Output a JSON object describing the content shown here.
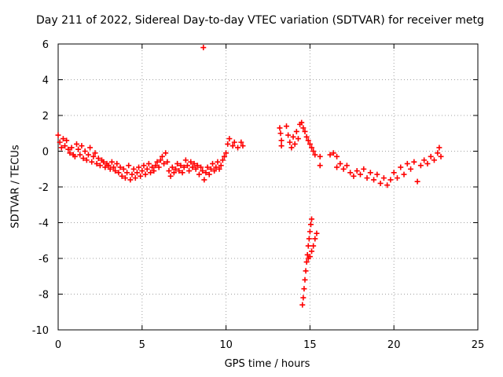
{
  "chart_data": {
    "type": "scatter",
    "title": "Day 211 of 2022, Sidereal Day-to-day VTEC variation (SDTVAR) for receiver metg",
    "xlabel": "GPS time / hours",
    "ylabel": "SDTVAR / TECUs",
    "xlim": [
      0,
      25
    ],
    "ylim": [
      -10,
      6
    ],
    "xticks": [
      0,
      5,
      10,
      15,
      20,
      25
    ],
    "yticks": [
      -10,
      -8,
      -6,
      -4,
      -2,
      0,
      2,
      4,
      6
    ],
    "grid": true,
    "marker": "+",
    "color": "#ff0000",
    "series": [
      {
        "name": "SDTVAR",
        "points": [
          [
            0.0,
            0.9
          ],
          [
            0.1,
            0.5
          ],
          [
            0.2,
            0.2
          ],
          [
            0.3,
            0.7
          ],
          [
            0.4,
            0.3
          ],
          [
            0.5,
            0.6
          ],
          [
            0.6,
            0.1
          ],
          [
            0.7,
            -0.1
          ],
          [
            0.8,
            0.2
          ],
          [
            0.9,
            -0.2
          ],
          [
            1.0,
            -0.3
          ],
          [
            1.1,
            0.4
          ],
          [
            1.2,
            0.1
          ],
          [
            1.3,
            -0.2
          ],
          [
            1.4,
            0.3
          ],
          [
            1.5,
            -0.4
          ],
          [
            1.6,
            0.0
          ],
          [
            1.7,
            -0.5
          ],
          [
            1.8,
            -0.2
          ],
          [
            1.9,
            0.2
          ],
          [
            2.0,
            -0.6
          ],
          [
            2.1,
            -0.3
          ],
          [
            2.2,
            -0.1
          ],
          [
            2.3,
            -0.7
          ],
          [
            2.4,
            -0.4
          ],
          [
            2.5,
            -0.8
          ],
          [
            2.6,
            -0.5
          ],
          [
            2.7,
            -0.6
          ],
          [
            2.8,
            -0.9
          ],
          [
            2.9,
            -0.7
          ],
          [
            3.0,
            -0.8
          ],
          [
            3.1,
            -1.0
          ],
          [
            3.2,
            -0.6
          ],
          [
            3.3,
            -0.9
          ],
          [
            3.4,
            -1.1
          ],
          [
            3.5,
            -0.7
          ],
          [
            3.6,
            -1.2
          ],
          [
            3.7,
            -0.9
          ],
          [
            3.8,
            -1.4
          ],
          [
            3.9,
            -1.0
          ],
          [
            4.0,
            -1.5
          ],
          [
            4.1,
            -1.2
          ],
          [
            4.2,
            -0.8
          ],
          [
            4.3,
            -1.6
          ],
          [
            4.4,
            -1.3
          ],
          [
            4.5,
            -1.0
          ],
          [
            4.6,
            -1.5
          ],
          [
            4.7,
            -1.2
          ],
          [
            4.8,
            -0.9
          ],
          [
            4.9,
            -1.4
          ],
          [
            5.0,
            -1.1
          ],
          [
            5.1,
            -0.8
          ],
          [
            5.2,
            -1.3
          ],
          [
            5.3,
            -1.0
          ],
          [
            5.4,
            -0.7
          ],
          [
            5.5,
            -1.2
          ],
          [
            5.6,
            -0.9
          ],
          [
            5.7,
            -1.1
          ],
          [
            5.8,
            -0.8
          ],
          [
            5.9,
            -0.6
          ],
          [
            6.0,
            -0.9
          ],
          [
            6.1,
            -0.5
          ],
          [
            6.2,
            -0.3
          ],
          [
            6.3,
            -0.7
          ],
          [
            6.4,
            -0.1
          ],
          [
            6.5,
            -0.6
          ],
          [
            6.6,
            -1.1
          ],
          [
            6.7,
            -1.4
          ],
          [
            6.8,
            -0.9
          ],
          [
            6.9,
            -1.2
          ],
          [
            7.0,
            -1.0
          ],
          [
            7.1,
            -0.7
          ],
          [
            7.2,
            -1.1
          ],
          [
            7.3,
            -0.8
          ],
          [
            7.4,
            -1.2
          ],
          [
            7.5,
            -0.9
          ],
          [
            7.6,
            -0.5
          ],
          [
            7.7,
            -0.8
          ],
          [
            7.8,
            -1.1
          ],
          [
            7.9,
            -0.6
          ],
          [
            8.0,
            -0.9
          ],
          [
            8.1,
            -0.7
          ],
          [
            8.2,
            -1.0
          ],
          [
            8.3,
            -0.8
          ],
          [
            8.4,
            -1.3
          ],
          [
            8.5,
            -0.9
          ],
          [
            8.6,
            -1.1
          ],
          [
            8.7,
            -1.6
          ],
          [
            8.8,
            -1.2
          ],
          [
            8.9,
            -0.9
          ],
          [
            9.0,
            -1.3
          ],
          [
            9.1,
            -1.0
          ],
          [
            9.2,
            -0.7
          ],
          [
            9.3,
            -1.1
          ],
          [
            9.4,
            -0.9
          ],
          [
            9.5,
            -0.6
          ],
          [
            9.6,
            -1.0
          ],
          [
            9.7,
            -0.8
          ],
          [
            9.8,
            -0.5
          ],
          [
            9.9,
            -0.3
          ],
          [
            10.0,
            -0.1
          ],
          [
            10.1,
            0.4
          ],
          [
            10.2,
            0.7
          ],
          [
            10.4,
            0.3
          ],
          [
            10.5,
            0.5
          ],
          [
            10.7,
            0.2
          ],
          [
            10.9,
            0.5
          ],
          [
            11.0,
            0.3
          ],
          [
            8.65,
            5.8
          ],
          [
            13.2,
            1.3
          ],
          [
            13.25,
            1.0
          ],
          [
            13.3,
            0.6
          ],
          [
            13.3,
            0.3
          ],
          [
            13.6,
            1.4
          ],
          [
            13.7,
            0.9
          ],
          [
            13.8,
            0.5
          ],
          [
            13.9,
            0.2
          ],
          [
            14.0,
            0.8
          ],
          [
            14.1,
            0.4
          ],
          [
            14.2,
            1.1
          ],
          [
            14.3,
            0.7
          ],
          [
            14.4,
            1.5
          ],
          [
            14.5,
            1.6
          ],
          [
            14.6,
            1.3
          ],
          [
            14.7,
            1.1
          ],
          [
            14.8,
            0.8
          ],
          [
            14.9,
            0.6
          ],
          [
            15.0,
            0.4
          ],
          [
            15.1,
            0.2
          ],
          [
            15.2,
            0.0
          ],
          [
            15.3,
            -0.2
          ],
          [
            15.6,
            -0.3
          ],
          [
            15.6,
            -0.8
          ],
          [
            14.55,
            -8.6
          ],
          [
            14.6,
            -8.2
          ],
          [
            14.65,
            -7.7
          ],
          [
            14.7,
            -7.2
          ],
          [
            14.75,
            -6.7
          ],
          [
            14.8,
            -6.2
          ],
          [
            14.85,
            -5.8
          ],
          [
            14.9,
            -5.3
          ],
          [
            14.95,
            -4.9
          ],
          [
            15.0,
            -4.5
          ],
          [
            15.05,
            -4.1
          ],
          [
            15.1,
            -3.8
          ],
          [
            14.9,
            -6.0
          ],
          [
            15.0,
            -5.9
          ],
          [
            15.1,
            -5.6
          ],
          [
            15.2,
            -5.3
          ],
          [
            15.3,
            -4.9
          ],
          [
            15.4,
            -4.6
          ],
          [
            16.2,
            -0.2
          ],
          [
            16.4,
            -0.1
          ],
          [
            16.6,
            -0.3
          ],
          [
            16.6,
            -0.9
          ],
          [
            16.8,
            -0.7
          ],
          [
            17.0,
            -1.0
          ],
          [
            17.2,
            -0.8
          ],
          [
            17.4,
            -1.2
          ],
          [
            17.6,
            -1.4
          ],
          [
            17.8,
            -1.1
          ],
          [
            18.0,
            -1.3
          ],
          [
            18.2,
            -1.0
          ],
          [
            18.4,
            -1.5
          ],
          [
            18.6,
            -1.2
          ],
          [
            18.8,
            -1.6
          ],
          [
            19.0,
            -1.3
          ],
          [
            19.2,
            -1.8
          ],
          [
            19.4,
            -1.5
          ],
          [
            19.6,
            -1.9
          ],
          [
            19.8,
            -1.6
          ],
          [
            20.0,
            -1.2
          ],
          [
            20.2,
            -1.5
          ],
          [
            20.4,
            -0.9
          ],
          [
            20.6,
            -1.3
          ],
          [
            20.8,
            -0.7
          ],
          [
            21.0,
            -1.0
          ],
          [
            21.2,
            -0.6
          ],
          [
            21.4,
            -1.7
          ],
          [
            21.6,
            -0.8
          ],
          [
            21.8,
            -0.5
          ],
          [
            22.0,
            -0.7
          ],
          [
            22.2,
            -0.3
          ],
          [
            22.4,
            -0.5
          ],
          [
            22.6,
            -0.1
          ],
          [
            22.7,
            0.2
          ],
          [
            22.8,
            -0.3
          ]
        ]
      }
    ]
  }
}
